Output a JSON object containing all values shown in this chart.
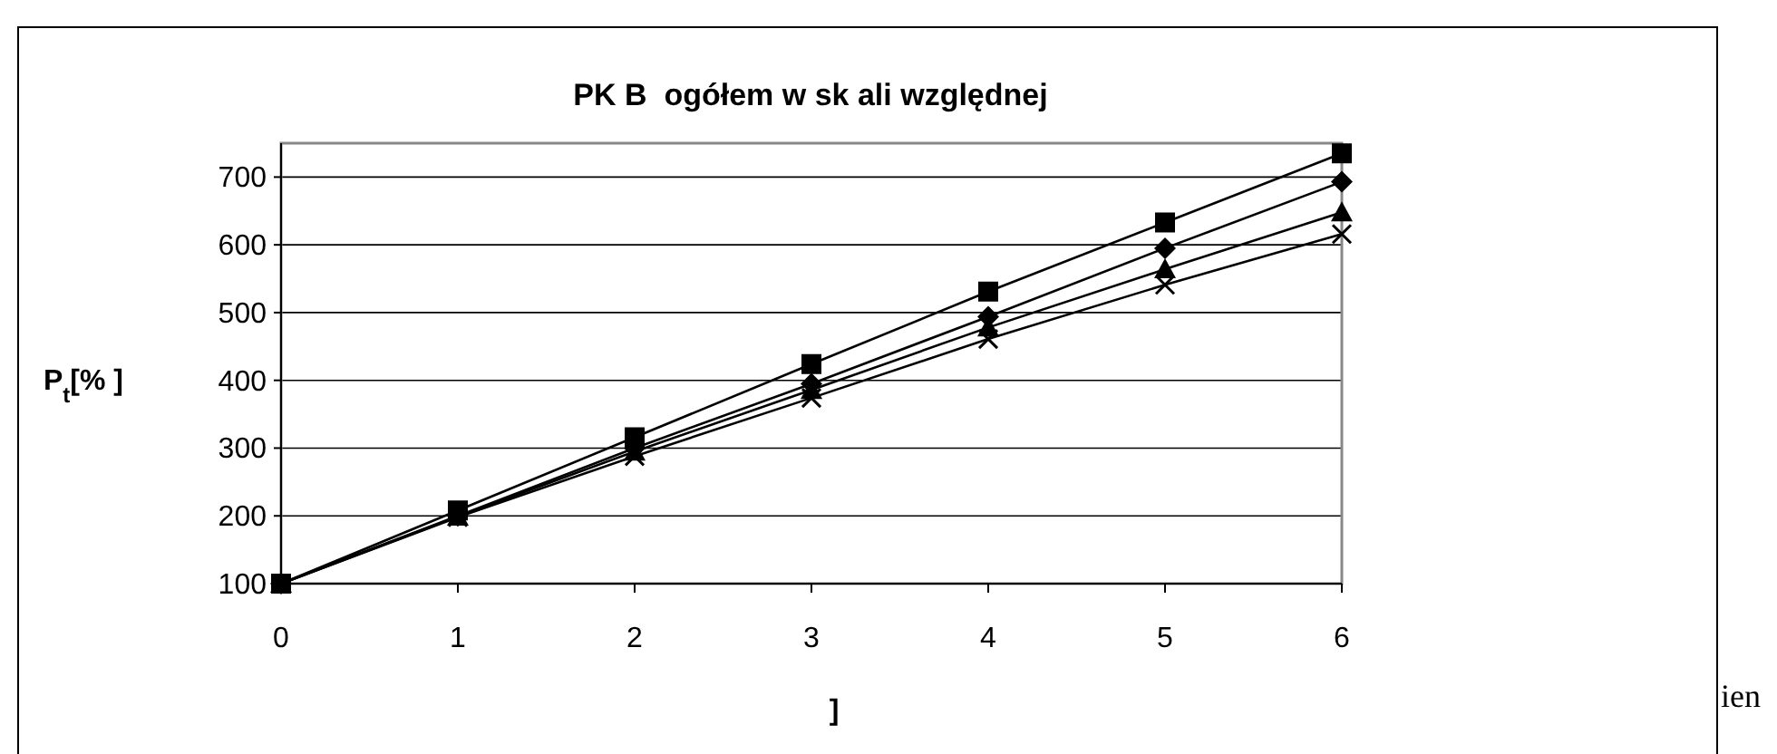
{
  "chart_data": {
    "type": "line",
    "title": "PK B  ogółem w sk ali względnej",
    "xlabel": "]",
    "ylabel": "P$_{t}$[% ]",
    "annotations": [
      "ien"
    ],
    "x": [
      0,
      1,
      2,
      3,
      4,
      5,
      6
    ],
    "xlim": [
      0,
      6
    ],
    "xticks": [
      0,
      1,
      2,
      3,
      4,
      5,
      6
    ],
    "ylim": [
      100,
      750
    ],
    "yticks": [
      100,
      200,
      300,
      400,
      500,
      600,
      700
    ],
    "grid": "y",
    "line_style": "solid",
    "series": [
      {
        "color": "#000000",
        "marker": "square",
        "values": [
          100,
          208,
          316,
          424,
          531,
          633,
          735
        ]
      },
      {
        "color": "#000000",
        "marker": "diamond",
        "values": [
          100,
          200,
          300,
          395,
          494,
          595,
          693
        ]
      },
      {
        "color": "#000000",
        "marker": "triangle",
        "values": [
          100,
          199,
          295,
          386,
          478,
          564,
          648
        ]
      },
      {
        "color": "#000000",
        "marker": "cross",
        "values": [
          100,
          198,
          288,
          374,
          461,
          541,
          616
        ]
      }
    ]
  }
}
